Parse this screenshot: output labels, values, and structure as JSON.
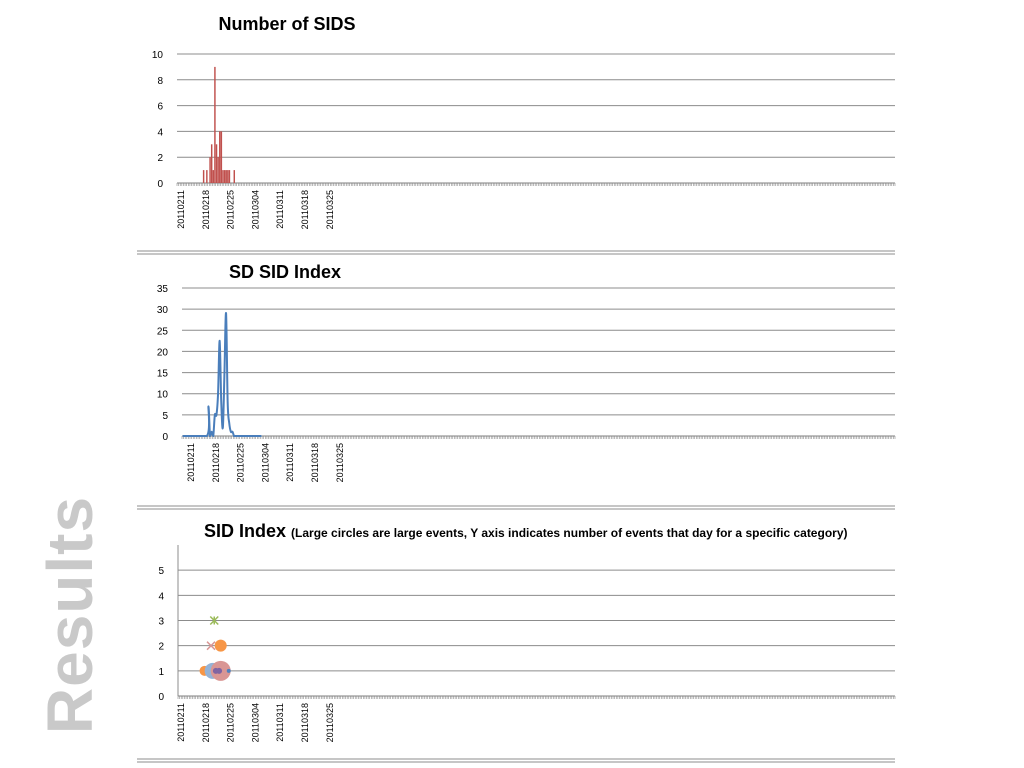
{
  "slide": {
    "side_title": "Results"
  },
  "chart_data": [
    {
      "type": "bar",
      "title": "Number of SIDS",
      "xlabel": "",
      "ylabel": "",
      "ylim": [
        0,
        10
      ],
      "yticks": [
        0,
        2,
        4,
        6,
        8,
        10
      ],
      "date_ticks": [
        "20110211",
        "20110218",
        "20110225",
        "20110304",
        "20110311",
        "20110318",
        "20110325"
      ],
      "first_date": "20110211",
      "last_date": "20120501",
      "grid": true,
      "color": "#c0504d",
      "x": [
        "20110227",
        "20110301",
        "20110303",
        "20110304",
        "20110305",
        "20110306",
        "20110307",
        "20110308",
        "20110309",
        "20110310",
        "20110311",
        "20110312",
        "20110313",
        "20110314",
        "20110315",
        "20110318"
      ],
      "values": [
        1,
        1,
        2,
        3,
        1,
        9,
        3,
        2,
        4,
        4,
        1,
        1,
        1,
        1,
        1,
        1
      ]
    },
    {
      "type": "line",
      "title": "SD SID Index",
      "xlabel": "",
      "ylabel": "",
      "ylim": [
        0,
        35
      ],
      "yticks": [
        0,
        5,
        10,
        15,
        20,
        25,
        30,
        35
      ],
      "date_ticks": [
        "20110211",
        "20110218",
        "20110225",
        "20110304",
        "20110311",
        "20110318",
        "20110325"
      ],
      "first_date": "20110211",
      "last_date": "20120501",
      "grid": true,
      "color": "#4a7ebb",
      "x": [
        "20110211",
        "20110226",
        "20110227",
        "20110228",
        "20110301",
        "20110302",
        "20110303",
        "20110304",
        "20110305",
        "20110306",
        "20110307",
        "20110308",
        "20110309",
        "20110310",
        "20110311",
        "20110312",
        "20110313",
        "20110314",
        "20110315",
        "20110316",
        "20110317",
        "20110401"
      ],
      "values": [
        0,
        0,
        7,
        0,
        1,
        0,
        5,
        5,
        10,
        22.5,
        8,
        2,
        15,
        29,
        8,
        3,
        1,
        1,
        0,
        0,
        0,
        0
      ]
    },
    {
      "type": "scatter",
      "title": "SID Index",
      "subtitle": "(Large circles are large events, Y axis indicates number of events that day for a specific category)",
      "xlabel": "",
      "ylabel": "",
      "ylim": [
        0,
        6
      ],
      "yticks": [
        0,
        1,
        2,
        3,
        4,
        5
      ],
      "date_ticks": [
        "20110211",
        "20110218",
        "20110225",
        "20110304",
        "20110311",
        "20110318",
        "20110325"
      ],
      "first_date": "20110211",
      "last_date": "20120501",
      "grid": true,
      "points": [
        {
          "x": "20110227",
          "y": 1,
          "marker": "circle",
          "size": 5,
          "color": "#f79646"
        },
        {
          "x": "20110301",
          "y": 1,
          "marker": "circle",
          "size": 2,
          "color": "#4bacc6"
        },
        {
          "x": "20110303",
          "y": 1,
          "marker": "circle",
          "size": 5,
          "color": "#4bacc6"
        },
        {
          "x": "20110304",
          "y": 1,
          "marker": "circle",
          "size": 8,
          "color": "#95b3d7"
        },
        {
          "x": "20110309",
          "y": 1,
          "marker": "circle",
          "size": 10,
          "color": "#d99694"
        },
        {
          "x": "20110314",
          "y": 1,
          "marker": "circle",
          "size": 2,
          "color": "#4f81bd"
        },
        {
          "x": "20110306",
          "y": 1,
          "marker": "circle",
          "size": 3,
          "color": "#8064a2"
        },
        {
          "x": "20110308",
          "y": 1,
          "marker": "circle",
          "size": 3,
          "color": "#8064a2"
        },
        {
          "x": "20110303",
          "y": 2,
          "marker": "x",
          "size": 4,
          "color": "#d99694"
        },
        {
          "x": "20110309",
          "y": 2,
          "marker": "circle",
          "size": 6,
          "color": "#f79646"
        },
        {
          "x": "20110305",
          "y": 3,
          "marker": "star",
          "size": 4,
          "color": "#9bbb59"
        }
      ]
    }
  ]
}
